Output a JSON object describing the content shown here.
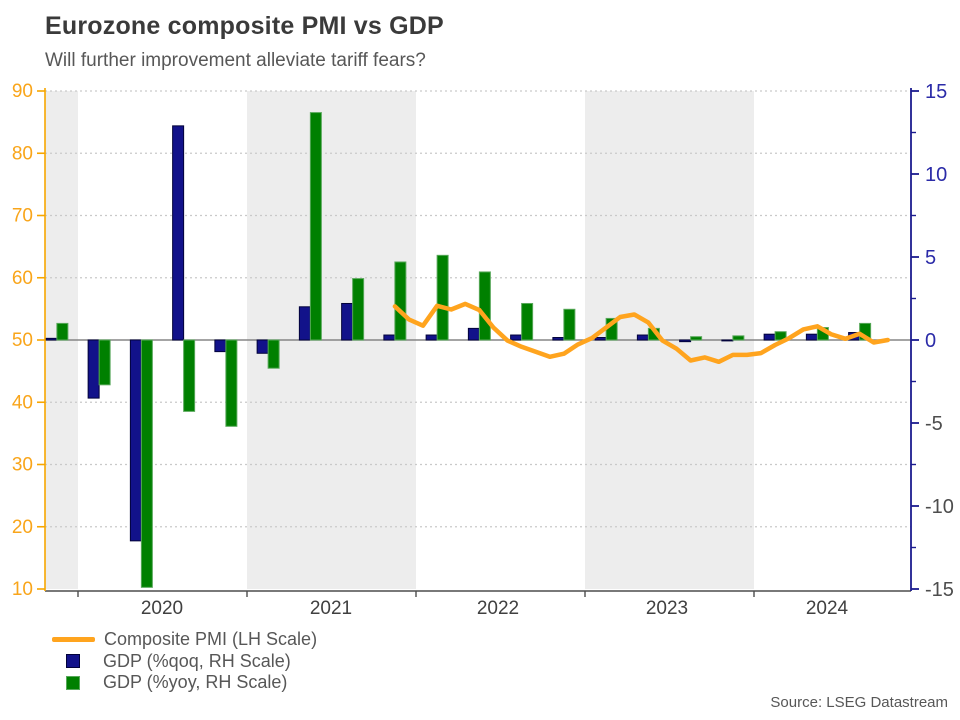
{
  "header": {
    "title": "Eurozone composite PMI vs GDP",
    "subtitle": "Will further improvement alleviate tariff fears?"
  },
  "footer": {
    "source": "Source: LSEG Datastream"
  },
  "chart_data": {
    "type": "combo-bar-line",
    "title": "Eurozone composite PMI vs GDP",
    "left_axis": {
      "min": 10,
      "max": 90,
      "tick_step": 10,
      "ticks": [
        10,
        20,
        30,
        40,
        50,
        60,
        70,
        80,
        90
      ],
      "color": "#F7A600",
      "label_color": "#F9A51A"
    },
    "right_axis": {
      "min": -15,
      "max": 15,
      "tick_step": 5,
      "minor_tick_step": 2.5,
      "ticks": [
        -15,
        -10,
        -5,
        0,
        5,
        10,
        15
      ],
      "line_color": "#1B1B8F",
      "positive_label_color": "#2B2BA8",
      "negative_label_color": "#4D4D4D"
    },
    "x_axis": {
      "year_labels": [
        "2020",
        "2021",
        "2022",
        "2023",
        "2024"
      ],
      "label_color": "#404040",
      "shaded_band_color": "#EDEDED",
      "shaded_years": [
        2019,
        2021,
        2023
      ]
    },
    "grid": {
      "dotted_color": "#C9C9C9",
      "zero_line_color": "#858585",
      "baseline_color": "#4D4D4D"
    },
    "quarterly": {
      "categories": [
        "2019Q4",
        "2020Q1",
        "2020Q2",
        "2020Q3",
        "2020Q4",
        "2021Q1",
        "2021Q2",
        "2021Q3",
        "2021Q4",
        "2022Q1",
        "2022Q2",
        "2022Q3",
        "2022Q4",
        "2023Q1",
        "2023Q2",
        "2023Q3",
        "2023Q4",
        "2024Q1",
        "2024Q2",
        "2024Q3"
      ],
      "series": [
        {
          "name": "GDP (%qoq, RH Scale)",
          "axis": "right",
          "color": "#12128A",
          "border": "#02023A",
          "values": [
            0.1,
            -3.5,
            -12.1,
            12.9,
            -0.7,
            -0.8,
            2.0,
            2.2,
            0.3,
            0.3,
            0.7,
            0.3,
            0.15,
            0.15,
            0.3,
            -0.1,
            0.0,
            0.35,
            0.35,
            0.45
          ]
        },
        {
          "name": "GDP (%yoy, RH Scale)",
          "axis": "right",
          "color": "#008000",
          "border": "#58A85A",
          "values": [
            1.0,
            -2.7,
            -14.9,
            -4.3,
            -5.2,
            -1.7,
            13.7,
            3.7,
            4.7,
            5.1,
            4.1,
            2.2,
            1.85,
            1.3,
            0.7,
            0.2,
            0.25,
            0.5,
            0.75,
            1.0
          ]
        }
      ]
    },
    "pmi_line": {
      "name": "Composite PMI (LH Scale)",
      "axis": "left",
      "color": "#FFA41E",
      "width": 4.5,
      "start_month": "2021-11",
      "months": [
        "2021-11",
        "2021-12",
        "2022-01",
        "2022-02",
        "2022-03",
        "2022-04",
        "2022-05",
        "2022-06",
        "2022-07",
        "2022-08",
        "2022-09",
        "2022-10",
        "2022-11",
        "2022-12",
        "2023-01",
        "2023-02",
        "2023-03",
        "2023-04",
        "2023-05",
        "2023-06",
        "2023-07",
        "2023-08",
        "2023-09",
        "2023-10",
        "2023-11",
        "2023-12",
        "2024-01",
        "2024-02",
        "2024-03",
        "2024-04",
        "2024-05",
        "2024-06",
        "2024-07",
        "2024-08",
        "2024-09",
        "2024-10"
      ],
      "values": [
        55.4,
        53.3,
        52.3,
        55.5,
        54.9,
        55.8,
        54.8,
        52.0,
        49.9,
        48.9,
        48.1,
        47.3,
        47.8,
        49.3,
        50.3,
        52.0,
        53.7,
        54.1,
        52.8,
        49.9,
        48.6,
        46.7,
        47.2,
        46.5,
        47.6,
        47.6,
        47.9,
        49.2,
        50.3,
        51.7,
        52.2,
        50.9,
        50.2,
        51.0,
        49.6,
        50.0
      ]
    },
    "legend": [
      {
        "label": "Composite PMI (LH Scale)",
        "swatch": "line",
        "color": "#FFA41E"
      },
      {
        "label": "GDP (%qoq, RH Scale)",
        "swatch": "box",
        "color": "#12128A",
        "border": "#02023A"
      },
      {
        "label": "GDP (%yoy, RH Scale)",
        "swatch": "box",
        "color": "#008000",
        "border": "#58A85A"
      }
    ],
    "legend_position": "bottom-left"
  }
}
